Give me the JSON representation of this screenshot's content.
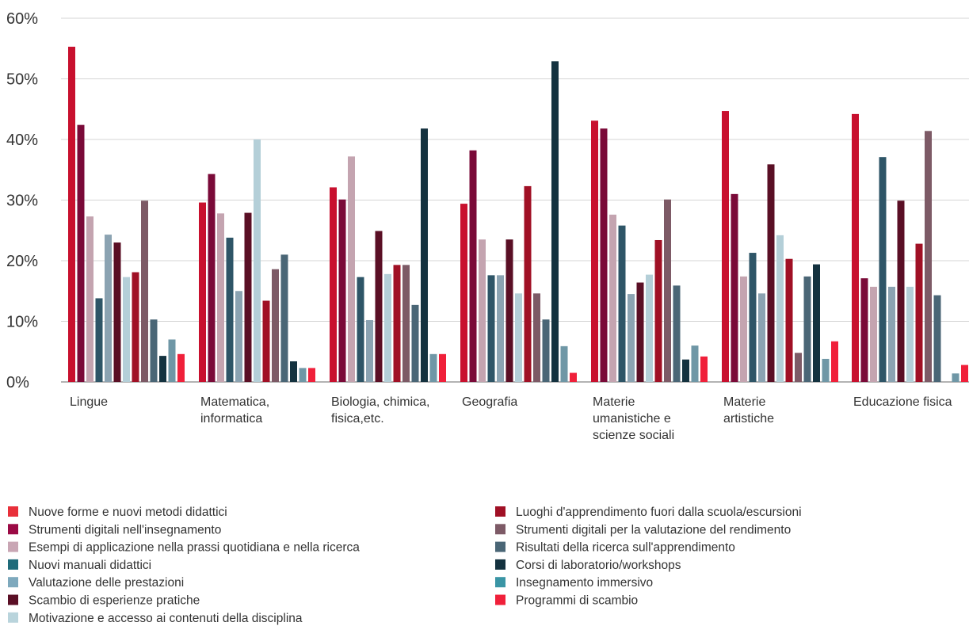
{
  "chart_data": {
    "type": "bar",
    "ylim": [
      0,
      60
    ],
    "y_ticks": [
      "0%",
      "10%",
      "20%",
      "30%",
      "40%",
      "50%",
      "60%"
    ],
    "grid": true,
    "legend_position": "bottom",
    "categories": [
      [
        "Lingue"
      ],
      [
        "Matematica,",
        "informatica"
      ],
      [
        "Biologia, chimica,",
        "fisica,etc."
      ],
      [
        "Geografia"
      ],
      [
        "Materie",
        "umanistiche e",
        "scienze sociali"
      ],
      [
        "Materie",
        "artistiche"
      ],
      [
        "Educazione fisica"
      ]
    ],
    "series": [
      {
        "name": "Nuove forme e nuovi metodi didattici",
        "color": "#c8102e",
        "values": [
          55.3,
          29.6,
          32.1,
          29.4,
          43.1,
          44.7,
          44.2
        ]
      },
      {
        "name": "Strumenti digitali nell'insegnamento",
        "color": "#7a0a38",
        "values": [
          42.4,
          34.3,
          30.1,
          38.2,
          41.8,
          31.0,
          17.1
        ]
      },
      {
        "name": "Esempi di applicazione nella prassi quotidiana e nella ricerca",
        "color": "#c4a4b0",
        "values": [
          27.3,
          27.8,
          37.2,
          23.5,
          27.6,
          17.4,
          15.7
        ]
      },
      {
        "name": "Nuovi manuali didattici",
        "color": "#2e5567",
        "values": [
          13.8,
          23.8,
          17.3,
          17.6,
          25.8,
          21.3,
          37.1
        ]
      },
      {
        "name": "Valutazione delle prestazioni",
        "color": "#8ba3b2",
        "values": [
          24.3,
          15.0,
          10.2,
          17.6,
          14.5,
          14.6,
          15.7
        ]
      },
      {
        "name": "Scambio di esperienze pratiche",
        "color": "#5a0f25",
        "values": [
          23.0,
          27.9,
          24.9,
          23.5,
          16.4,
          35.9,
          29.9
        ]
      },
      {
        "name": "Motivazione e accesso ai contenuti della disciplina",
        "color": "#b4cfd8",
        "values": [
          17.3,
          40.0,
          17.8,
          14.6,
          17.7,
          24.2,
          15.7
        ]
      },
      {
        "name": "Luoghi d'apprendimento fuori dalla scuola/escursioni",
        "color": "#a01025",
        "values": [
          18.1,
          13.4,
          19.3,
          32.3,
          23.4,
          20.3,
          22.8
        ]
      },
      {
        "name": "Strumenti digitali per la valutazione del rendimento",
        "color": "#7d5a66",
        "values": [
          29.9,
          18.6,
          19.3,
          14.6,
          30.1,
          4.8,
          41.4
        ]
      },
      {
        "name": "Risultati della ricerca sull'apprendimento",
        "color": "#4a6676",
        "values": [
          10.3,
          21.0,
          12.7,
          10.3,
          15.9,
          17.4,
          14.3
        ]
      },
      {
        "name": "Corsi di laboratorio/workshops",
        "color": "#14323f",
        "values": [
          4.3,
          3.4,
          41.8,
          52.9,
          3.7,
          19.4,
          0
        ]
      },
      {
        "name": "Insegnamento immersivo",
        "color": "#6f97a6",
        "values": [
          7.0,
          2.3,
          4.6,
          5.9,
          6.0,
          3.8,
          1.4
        ]
      },
      {
        "name": "Programmi di scambio",
        "color": "#f0203a",
        "values": [
          4.6,
          2.3,
          4.6,
          1.5,
          4.2,
          6.7,
          2.8
        ]
      }
    ],
    "legend_order": [
      0,
      1,
      2,
      3,
      4,
      5,
      6,
      7,
      8,
      9,
      10,
      11,
      12
    ],
    "legend_colors": [
      "#e8303a",
      "#9b0a45",
      "#c9a6b4",
      "#1f6b7a",
      "#7ea9bd",
      "#5a0f25",
      "#b9d4dc",
      "#a01025",
      "#7d5a66",
      "#4a6676",
      "#14323f",
      "#3a95a5",
      "#f0203a"
    ]
  }
}
